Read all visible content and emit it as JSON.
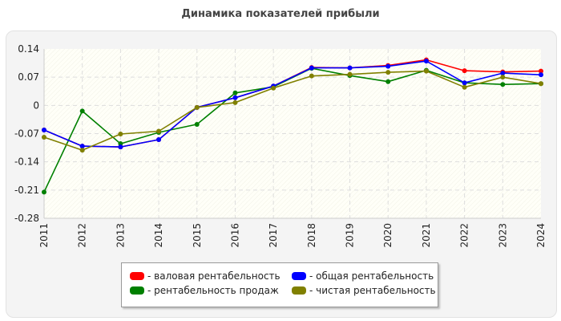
{
  "chart_data": {
    "type": "line",
    "title": "Динамика показателей прибыли",
    "xlabel": "",
    "ylabel": "",
    "categories": [
      "2011",
      "2012",
      "2013",
      "2014",
      "2015",
      "2016",
      "2017",
      "2018",
      "2019",
      "2020",
      "2021",
      "2022",
      "2023",
      "2024"
    ],
    "ylim": [
      -0.28,
      0.14
    ],
    "yticks": [
      0.14,
      0.07,
      0,
      -0.07,
      -0.14,
      -0.21,
      -0.28
    ],
    "ytick_labels": [
      "0.14",
      "0.07",
      "0",
      "-0.07",
      "-0.14",
      "-0.21",
      "-0.28"
    ],
    "grid": true,
    "legend_position": "bottom-center",
    "series": [
      {
        "name": "валовая рентабельность",
        "label": "- валовая рентабельность",
        "color": "#ff0000",
        "values": [
          -0.061,
          -0.101,
          -0.103,
          -0.085,
          -0.005,
          0.019,
          0.048,
          0.094,
          0.093,
          0.099,
          0.113,
          0.086,
          0.083,
          0.085
        ]
      },
      {
        "name": "рентабельность продаж",
        "label": "- рентабельность продаж",
        "color": "#008000",
        "values": [
          -0.215,
          -0.014,
          -0.095,
          -0.067,
          -0.047,
          0.031,
          0.046,
          0.092,
          0.074,
          0.059,
          0.087,
          0.056,
          0.052,
          0.054
        ]
      },
      {
        "name": "общая рентабельность",
        "label": "- общая рентабельность",
        "color": "#0000ff",
        "values": [
          -0.061,
          -0.101,
          -0.103,
          -0.085,
          -0.005,
          0.019,
          0.048,
          0.093,
          0.093,
          0.097,
          0.11,
          0.056,
          0.08,
          0.076
        ]
      },
      {
        "name": "чистая рентабельность",
        "label": "- чистая рентабельность",
        "color": "#808000",
        "values": [
          -0.079,
          -0.111,
          -0.071,
          -0.064,
          -0.005,
          0.007,
          0.043,
          0.073,
          0.077,
          0.082,
          0.085,
          0.045,
          0.07,
          0.054
        ]
      }
    ]
  }
}
